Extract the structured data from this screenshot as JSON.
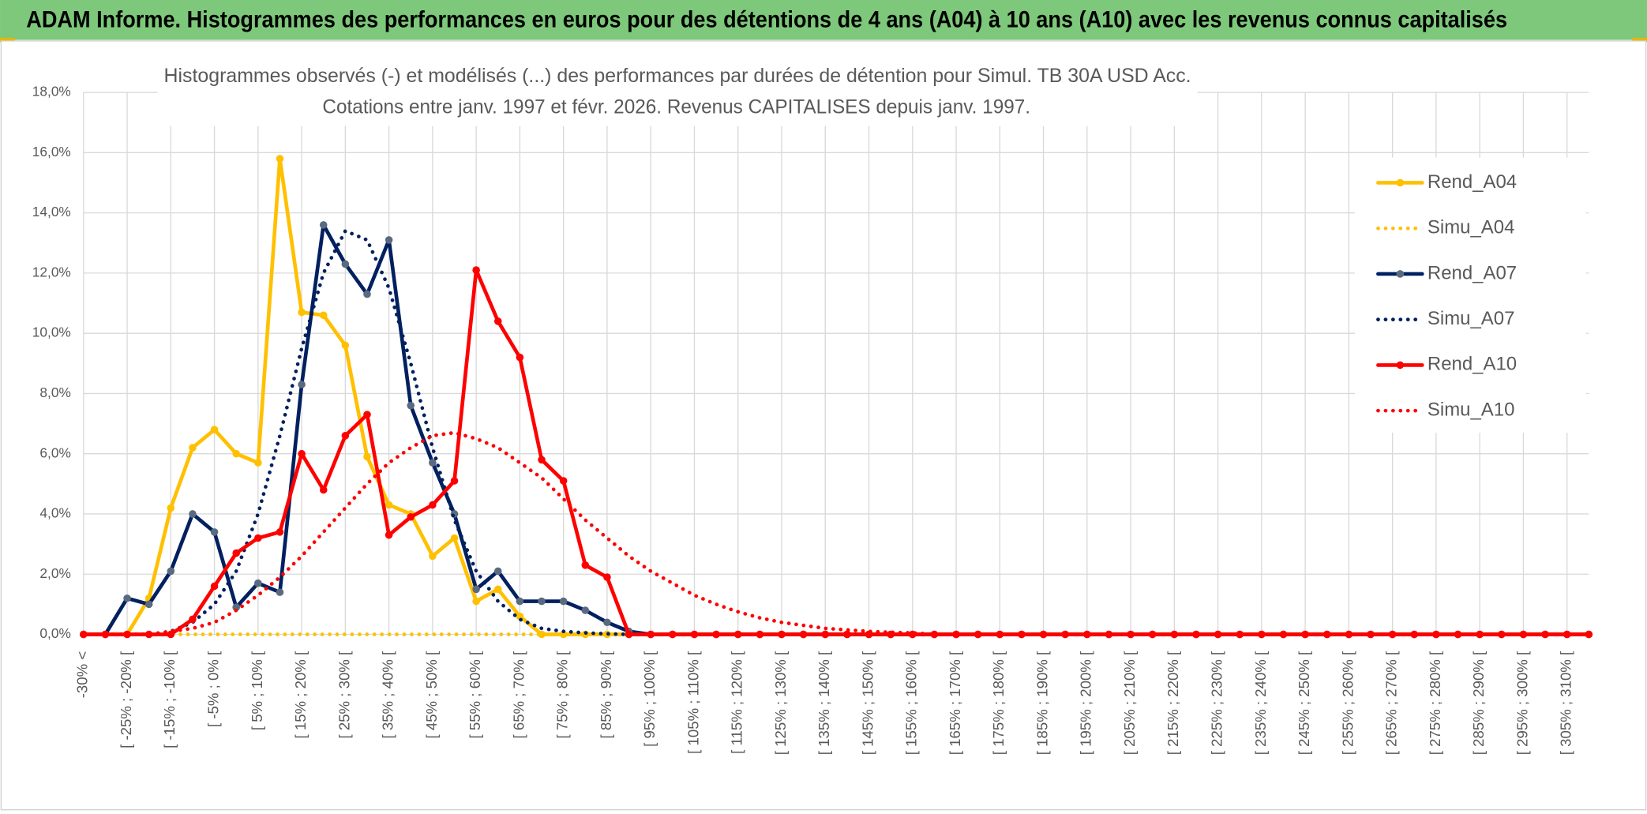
{
  "header": {
    "title": "ADAM Informe. Histogrammes des performances en euros pour des détentions de 4 ans (A04) à 10 ans (A10) avec les revenus connus capitalisés"
  },
  "chart_data": {
    "type": "line",
    "title": "Histogrammes observés (-) et modélisés (...) des performances par durées de détention pour Simul. TB 30A USD Acc.",
    "subtitle": "Cotations entre janv. 1997 et févr. 2026. Revenus CAPITALISES depuis janv. 1997.",
    "categories": [
      "-30% <",
      null,
      "[ -25% ; -20% [",
      null,
      "[ -15% ; -10% [",
      null,
      "[ -5% ; 0% [",
      null,
      "[ 5% ; 10% [",
      null,
      "[ 15% ; 20% [",
      null,
      "[ 25% ; 30% [",
      null,
      "[ 35% ; 40% [",
      null,
      "[ 45% ; 50% [",
      null,
      "[ 55% ; 60% [",
      null,
      "[ 65% ; 70% [",
      null,
      "[ 75% ; 80% [",
      null,
      "[ 85% ; 90% [",
      null,
      "[ 95% ; 100% [",
      null,
      "[ 105% ; 110% [",
      null,
      "[ 115% ; 120% [",
      null,
      "[ 125% ; 130% [",
      null,
      "[ 135% ; 140% [",
      null,
      "[ 145% ; 150% [",
      null,
      "[ 155% ; 160% [",
      null,
      "[ 165% ; 170% [",
      null,
      "[ 175% ; 180% [",
      null,
      "[ 185% ; 190% [",
      null,
      "[ 195% ; 200% [",
      null,
      "[ 205% ; 210% [",
      null,
      "[ 215% ; 220% [",
      null,
      "[ 225% ; 230% [",
      null,
      "[ 235% ; 240% [",
      null,
      "[ 245% ; 250% [",
      null,
      "[ 255% ; 260% [",
      null,
      "[ 265% ; 270% [",
      null,
      "[ 275% ; 280% [",
      null,
      "[ 285% ; 290% [",
      null,
      "[ 295% ; 300% [",
      null,
      "[ 305% ; 310% [",
      null
    ],
    "ylim": [
      0,
      18
    ],
    "yticks": [
      {
        "value": 0,
        "label": "0,0%"
      },
      {
        "value": 2,
        "label": "2,0%"
      },
      {
        "value": 4,
        "label": "4,0%"
      },
      {
        "value": 6,
        "label": "6,0%"
      },
      {
        "value": 8,
        "label": "8,0%"
      },
      {
        "value": 10,
        "label": "10,0%"
      },
      {
        "value": 12,
        "label": "12,0%"
      },
      {
        "value": 14,
        "label": "14,0%"
      },
      {
        "value": 16,
        "label": "16,0%"
      },
      {
        "value": 18,
        "label": "18,0%"
      }
    ],
    "grid": true,
    "legend": "right",
    "series": [
      {
        "name": "Rend_A04",
        "color": "#FFC000",
        "marker_color": "#FFC000",
        "dashed": false,
        "markers": true,
        "values": [
          0,
          0,
          0,
          1.2,
          4.2,
          6.2,
          6.8,
          6.0,
          5.7,
          15.8,
          10.7,
          10.6,
          9.6,
          5.9,
          4.3,
          4.0,
          2.6,
          3.2,
          1.1,
          1.5,
          0.6,
          0,
          0,
          0,
          0,
          0,
          0,
          0,
          0,
          0,
          0,
          0,
          0,
          0,
          0,
          0,
          0,
          0,
          0,
          0,
          0,
          0,
          0,
          0,
          0,
          0,
          0,
          0,
          0,
          0,
          0,
          0,
          0,
          0,
          0,
          0,
          0,
          0,
          0,
          0,
          0,
          0,
          0,
          0,
          0,
          0,
          0,
          0,
          0,
          0
        ]
      },
      {
        "name": "Simu_A04",
        "color": "#FFC000",
        "dashed": true,
        "markers": false,
        "values": [
          0,
          0,
          0,
          0,
          0,
          0,
          0,
          0,
          0,
          0,
          0,
          0,
          0,
          0,
          0,
          0,
          0,
          0,
          0,
          0,
          0,
          0,
          0,
          0,
          0,
          0,
          0,
          0,
          0,
          0,
          0,
          0,
          0,
          0,
          0,
          0,
          0,
          0,
          0,
          0,
          0,
          0,
          0,
          0,
          0,
          0,
          0,
          0,
          0,
          0,
          0,
          0,
          0,
          0,
          0,
          0,
          0,
          0,
          0,
          0,
          0,
          0,
          0,
          0,
          0,
          0,
          0,
          0,
          0,
          0
        ]
      },
      {
        "name": "Rend_A07",
        "color": "#002060",
        "marker_color": "#5a6a80",
        "dashed": false,
        "markers": true,
        "values": [
          0,
          0,
          1.2,
          1.0,
          2.1,
          4.0,
          3.4,
          0.9,
          1.7,
          1.4,
          8.3,
          13.6,
          12.3,
          11.3,
          13.1,
          7.6,
          5.7,
          4.0,
          1.5,
          2.1,
          1.1,
          1.1,
          1.1,
          0.8,
          0.4,
          0.1,
          0,
          0,
          0,
          0,
          0,
          0,
          0,
          0,
          0,
          0,
          0,
          0,
          0,
          0,
          0,
          0,
          0,
          0,
          0,
          0,
          0,
          0,
          0,
          0,
          0,
          0,
          0,
          0,
          0,
          0,
          0,
          0,
          0,
          0,
          0,
          0,
          0,
          0,
          0,
          0,
          0,
          0,
          0,
          0
        ]
      },
      {
        "name": "Simu_A07",
        "color": "#002060",
        "dashed": true,
        "markers": false,
        "values": [
          0,
          0,
          0,
          0,
          0.1,
          0.4,
          1.0,
          2.1,
          4.0,
          6.6,
          9.5,
          12.0,
          13.4,
          13.1,
          11.5,
          9.0,
          6.2,
          3.8,
          2.1,
          1.1,
          0.5,
          0.2,
          0.1,
          0.05,
          0.02,
          0,
          0,
          0,
          0,
          0,
          0,
          0,
          0,
          0,
          0,
          0,
          0,
          0,
          0,
          0,
          0,
          0,
          0,
          0,
          0,
          0,
          0,
          0,
          0,
          0,
          0,
          0,
          0,
          0,
          0,
          0,
          0,
          0,
          0,
          0,
          0,
          0,
          0,
          0,
          0,
          0,
          0,
          0,
          0,
          0
        ]
      },
      {
        "name": "Rend_A10",
        "color": "#FF0000",
        "marker_color": "#FF0000",
        "dashed": false,
        "markers": true,
        "values": [
          0,
          0,
          0,
          0,
          0,
          0.5,
          1.6,
          2.7,
          3.2,
          3.4,
          6.0,
          4.8,
          6.6,
          7.3,
          3.3,
          3.9,
          4.3,
          5.1,
          12.1,
          10.4,
          9.2,
          5.8,
          5.1,
          2.3,
          1.9,
          0,
          0,
          0,
          0,
          0,
          0,
          0,
          0,
          0,
          0,
          0,
          0,
          0,
          0,
          0,
          0,
          0,
          0,
          0,
          0,
          0,
          0,
          0,
          0,
          0,
          0,
          0,
          0,
          0,
          0,
          0,
          0,
          0,
          0,
          0,
          0,
          0,
          0,
          0,
          0,
          0,
          0,
          0,
          0,
          0
        ]
      },
      {
        "name": "Simu_A10",
        "color": "#FF0000",
        "dashed": true,
        "markers": false,
        "values": [
          0,
          0,
          0,
          0,
          0.1,
          0.2,
          0.4,
          0.8,
          1.3,
          1.9,
          2.6,
          3.4,
          4.2,
          5.0,
          5.7,
          6.2,
          6.6,
          6.7,
          6.5,
          6.2,
          5.7,
          5.2,
          4.5,
          3.8,
          3.2,
          2.6,
          2.1,
          1.7,
          1.3,
          1.0,
          0.75,
          0.55,
          0.4,
          0.3,
          0.2,
          0.15,
          0.1,
          0.07,
          0.05,
          0,
          0,
          0,
          0,
          0,
          0,
          0,
          0,
          0,
          0,
          0,
          0,
          0,
          0,
          0,
          0,
          0,
          0,
          0,
          0,
          0,
          0,
          0,
          0,
          0,
          0,
          0,
          0,
          0,
          0,
          0
        ]
      }
    ]
  }
}
